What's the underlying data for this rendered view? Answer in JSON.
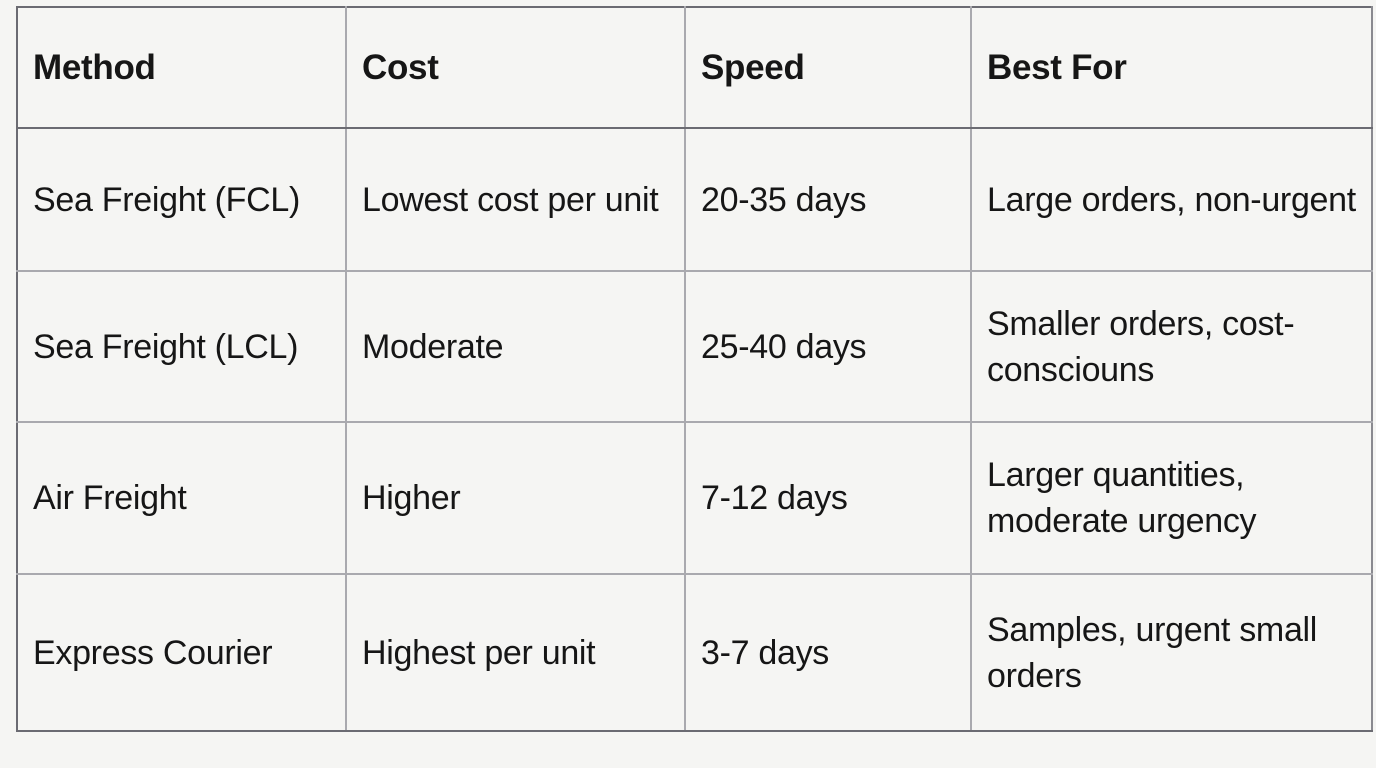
{
  "table": {
    "headers": [
      "Method",
      "Cost",
      "Speed",
      "Best For"
    ],
    "rows": [
      {
        "method": "Sea Freight (FCL)",
        "cost": "Lowest cost per unit",
        "speed": "20-35 days",
        "best_for": "Large orders, non-urgent"
      },
      {
        "method": "Sea Freight (LCL)",
        "cost": "Moderate",
        "speed": "25-40 days",
        "best_for": "Smaller orders, cost-consciouns"
      },
      {
        "method": "Air Freight",
        "cost": "Higher",
        "speed": "7-12 days",
        "best_for": "Larger quantities, moderate urgency"
      },
      {
        "method": "Express Courier",
        "cost": "Highest per unit",
        "speed": "3-7 days",
        "best_for": "Samples, urgent small orders"
      }
    ]
  }
}
